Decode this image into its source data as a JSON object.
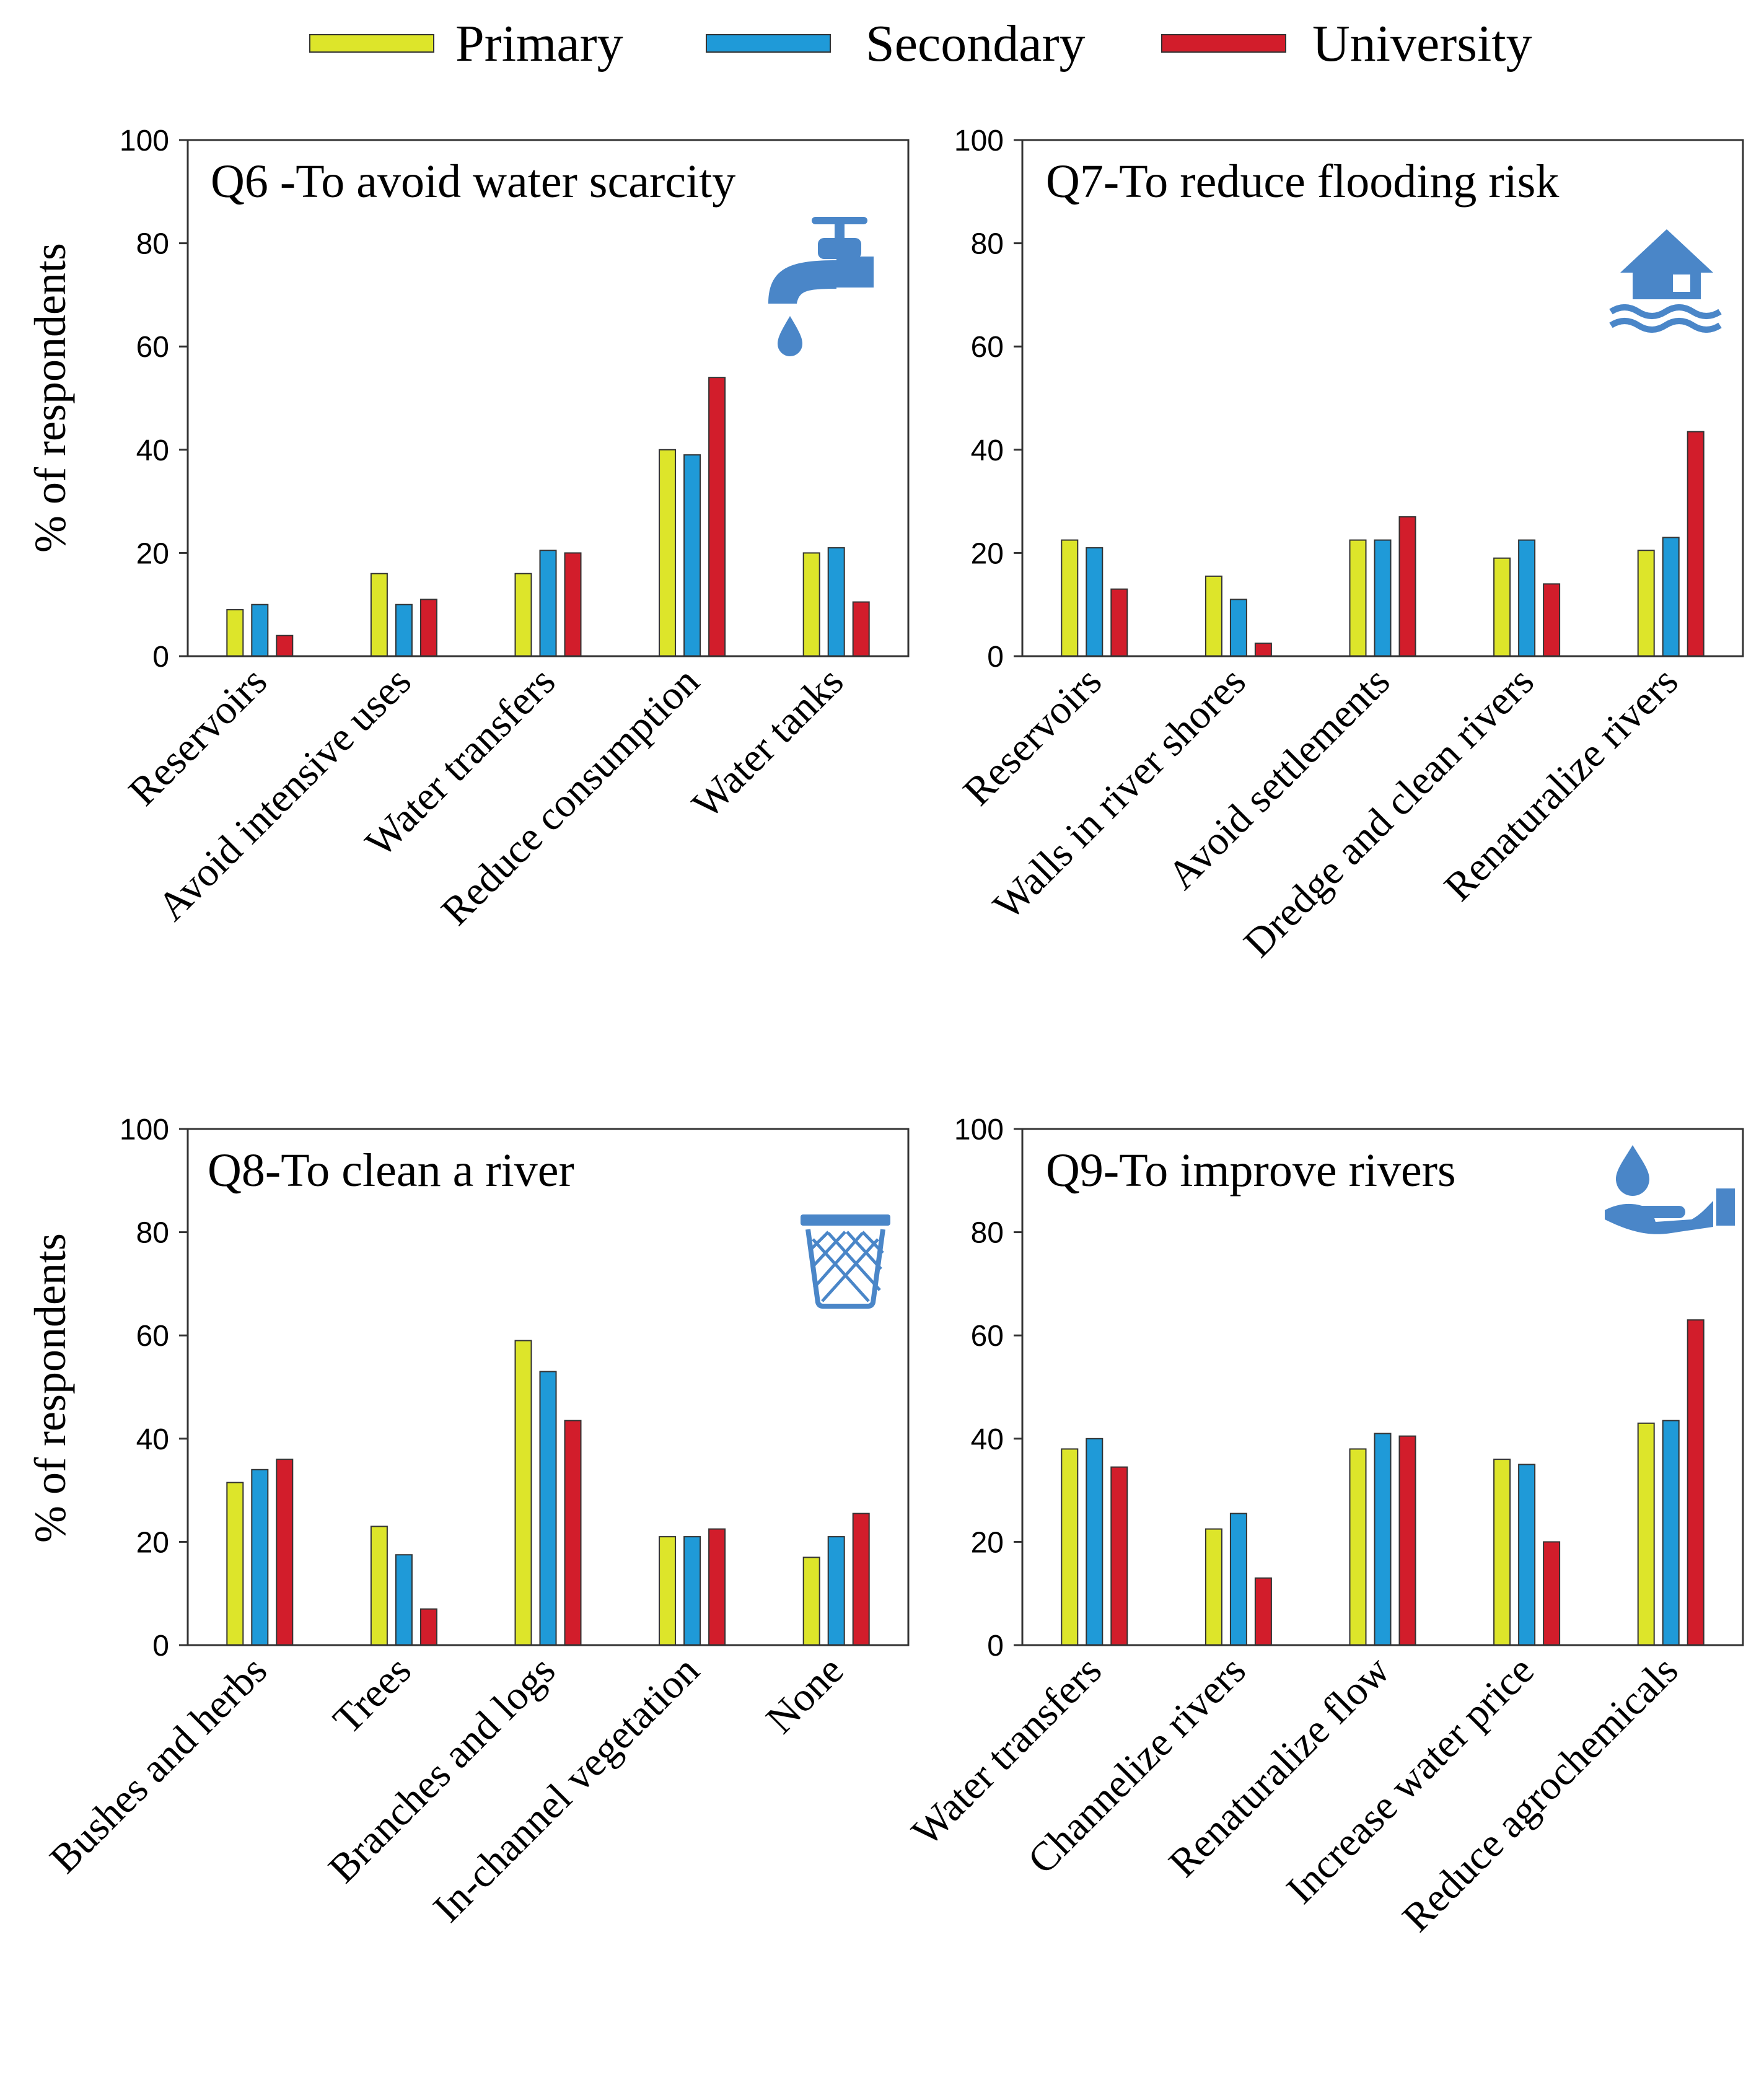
{
  "legend": [
    {
      "name": "Primary",
      "color": "#dde52a"
    },
    {
      "name": "Secondary",
      "color": "#1f9ad8"
    },
    {
      "name": "University",
      "color": "#d21d2b"
    }
  ],
  "icon_color": "#4a86c8",
  "chart_data": [
    {
      "type": "bar",
      "title": "Q6 -To avoid water scarcity",
      "icon": "water-tap-icon",
      "ylabel": "% of respondents",
      "xlabel": "",
      "ylim": [
        0,
        100
      ],
      "yticks": [
        0,
        20,
        40,
        60,
        80,
        100
      ],
      "categories": [
        "Reservoirs",
        "Avoid intensive uses",
        "Water transfers",
        "Reduce consumption",
        "Water tanks"
      ],
      "series": [
        {
          "name": "Primary",
          "values": [
            9,
            16,
            16,
            40,
            20
          ]
        },
        {
          "name": "Secondary",
          "values": [
            10,
            10,
            20.5,
            39,
            21
          ]
        },
        {
          "name": "University",
          "values": [
            4,
            11,
            20,
            54,
            10.5
          ]
        }
      ]
    },
    {
      "type": "bar",
      "title": "Q7-To reduce flooding risk",
      "icon": "flooded-house-icon",
      "ylabel": "",
      "xlabel": "",
      "ylim": [
        0,
        100
      ],
      "yticks": [
        0,
        20,
        40,
        60,
        80,
        100
      ],
      "categories": [
        "Reservoirs",
        "Walls in river shores",
        "Avoid settlements",
        "Dredge and clean rivers",
        "Renaturalize rivers"
      ],
      "series": [
        {
          "name": "Primary",
          "values": [
            22.5,
            15.5,
            22.5,
            19,
            20.5
          ]
        },
        {
          "name": "Secondary",
          "values": [
            21,
            11,
            22.5,
            22.5,
            23
          ]
        },
        {
          "name": "University",
          "values": [
            13,
            2.5,
            27,
            14,
            43.5
          ]
        }
      ]
    },
    {
      "type": "bar",
      "title": "Q8-To clean a river",
      "icon": "waste-basket-icon",
      "ylabel": "% of respondents",
      "xlabel": "",
      "ylim": [
        0,
        100
      ],
      "yticks": [
        0,
        20,
        40,
        60,
        80,
        100
      ],
      "categories": [
        "Bushes and herbs",
        "Trees",
        "Branches and logs",
        "In-channel vegetation",
        "None"
      ],
      "series": [
        {
          "name": "Primary",
          "values": [
            31.5,
            23,
            59,
            21,
            17
          ]
        },
        {
          "name": "Secondary",
          "values": [
            34,
            17.5,
            53,
            21,
            21
          ]
        },
        {
          "name": "University",
          "values": [
            36,
            7,
            43.5,
            22.5,
            25.5
          ]
        }
      ]
    },
    {
      "type": "bar",
      "title": "Q9-To improve rivers",
      "icon": "water-drop-hand-icon",
      "ylabel": "",
      "xlabel": "",
      "ylim": [
        0,
        100
      ],
      "yticks": [
        0,
        20,
        40,
        60,
        80,
        100
      ],
      "categories": [
        "Water transfers",
        "Channelize rivers",
        "Renaturalize flow",
        "Increase water price",
        "Reduce agrochemicals"
      ],
      "series": [
        {
          "name": "Primary",
          "values": [
            38,
            22.5,
            38,
            36,
            43
          ]
        },
        {
          "name": "Secondary",
          "values": [
            40,
            25.5,
            41,
            35,
            43.5
          ]
        },
        {
          "name": "University",
          "values": [
            34.5,
            13,
            40.5,
            20,
            63
          ]
        }
      ]
    }
  ]
}
